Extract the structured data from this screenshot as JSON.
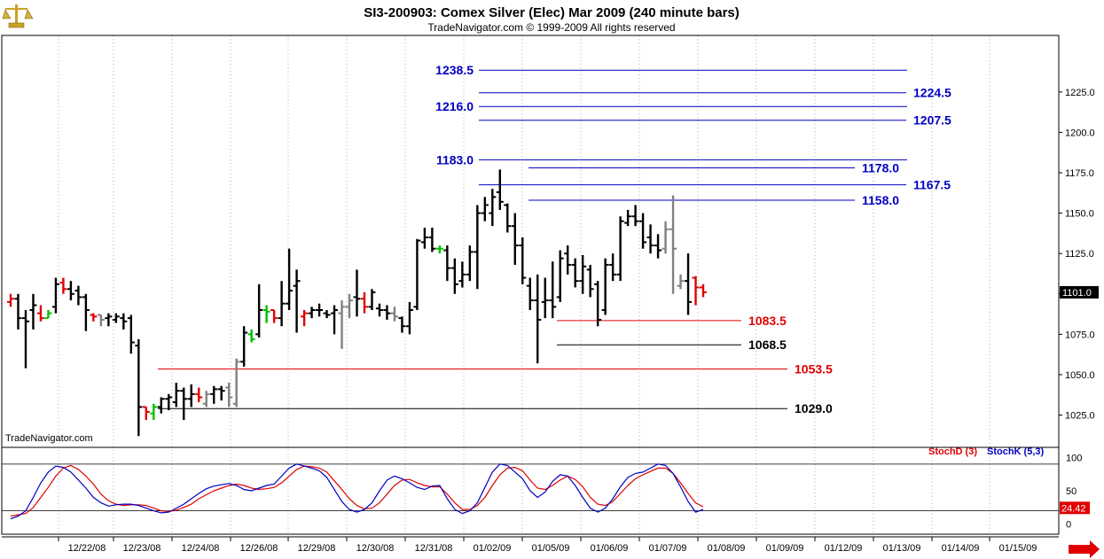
{
  "header": {
    "title": "SI3-200903:  Comex Silver (Elec) Mar 2009  (240 minute bars)",
    "subtitle": "TradeNavigator.com © 1999-2009 All rights reserved"
  },
  "watermark": "TradeNavigator.com",
  "colors": {
    "bar_black": "#000000",
    "bar_gray": "#808080",
    "bar_red": "#e00000",
    "bar_green": "#00c000",
    "level_blue": "#0000c0",
    "level_red": "#e00000",
    "level_black": "#000000",
    "stoch_d": "#e00000",
    "stoch_k": "#0000c0"
  },
  "chart_data": [
    {
      "type": "ohlc",
      "title": "SI3-200903:  Comex Silver (Elec) Mar 2009  (240 minute bars)",
      "ylim": [
        1005,
        1260
      ],
      "y_ticks": [
        "1025.0",
        "1050.0",
        "1075.0",
        "1100.0",
        "1125.0",
        "1150.0",
        "1175.0",
        "1200.0",
        "1225.0"
      ],
      "x_labels": [
        "12/22/08",
        "12/23/08",
        "12/24/08",
        "12/26/08",
        "12/29/08",
        "12/30/08",
        "12/31/08",
        "01/02/09",
        "01/05/09",
        "01/06/09",
        "01/07/09",
        "01/08/09",
        "01/09/09",
        "01/12/09",
        "01/13/09",
        "01/14/09",
        "01/15/09"
      ],
      "last_price": "1101.0",
      "bars": [
        {
          "o": 1095,
          "h": 1100,
          "l": 1092,
          "c": 1097,
          "color": "red"
        },
        {
          "o": 1097,
          "h": 1100,
          "l": 1078,
          "c": 1085,
          "color": "black"
        },
        {
          "o": 1085,
          "h": 1090,
          "l": 1054,
          "c": 1083,
          "color": "black"
        },
        {
          "o": 1090,
          "h": 1100,
          "l": 1078,
          "c": 1093,
          "color": "black"
        },
        {
          "o": 1088,
          "h": 1093,
          "l": 1083,
          "c": 1085,
          "color": "red"
        },
        {
          "o": 1085,
          "h": 1090,
          "l": 1085,
          "c": 1088,
          "color": "green"
        },
        {
          "o": 1092,
          "h": 1110,
          "l": 1088,
          "c": 1106,
          "color": "black"
        },
        {
          "o": 1107,
          "h": 1110,
          "l": 1100,
          "c": 1103,
          "color": "red"
        },
        {
          "o": 1103,
          "h": 1108,
          "l": 1096,
          "c": 1100,
          "color": "black"
        },
        {
          "o": 1102,
          "h": 1105,
          "l": 1093,
          "c": 1098,
          "color": "black"
        },
        {
          "o": 1098,
          "h": 1100,
          "l": 1077,
          "c": 1090,
          "color": "black"
        },
        {
          "o": 1087,
          "h": 1088,
          "l": 1083,
          "c": 1086,
          "color": "red"
        },
        {
          "o": 1087,
          "h": 1087,
          "l": 1080,
          "c": 1084,
          "color": "gray"
        },
        {
          "o": 1085,
          "h": 1088,
          "l": 1080,
          "c": 1086,
          "color": "black"
        },
        {
          "o": 1084,
          "h": 1088,
          "l": 1082,
          "c": 1086,
          "color": "black"
        },
        {
          "o": 1085,
          "h": 1088,
          "l": 1078,
          "c": 1083,
          "color": "black"
        },
        {
          "o": 1085,
          "h": 1087,
          "l": 1063,
          "c": 1070,
          "color": "black"
        },
        {
          "o": 1068,
          "h": 1072,
          "l": 1012,
          "c": 1030,
          "color": "black"
        },
        {
          "o": 1030,
          "h": 1030,
          "l": 1022,
          "c": 1027,
          "color": "red"
        },
        {
          "o": 1026,
          "h": 1032,
          "l": 1022,
          "c": 1030,
          "color": "green"
        },
        {
          "o": 1030,
          "h": 1036,
          "l": 1026,
          "c": 1035,
          "color": "black"
        },
        {
          "o": 1035,
          "h": 1038,
          "l": 1028,
          "c": 1036,
          "color": "black"
        },
        {
          "o": 1033,
          "h": 1045,
          "l": 1030,
          "c": 1040,
          "color": "black"
        },
        {
          "o": 1040,
          "h": 1042,
          "l": 1022,
          "c": 1035,
          "color": "black"
        },
        {
          "o": 1035,
          "h": 1044,
          "l": 1030,
          "c": 1038,
          "color": "black"
        },
        {
          "o": 1038,
          "h": 1042,
          "l": 1033,
          "c": 1036,
          "color": "red"
        },
        {
          "o": 1032,
          "h": 1040,
          "l": 1030,
          "c": 1038,
          "color": "gray"
        },
        {
          "o": 1038,
          "h": 1043,
          "l": 1032,
          "c": 1041,
          "color": "black"
        },
        {
          "o": 1041,
          "h": 1043,
          "l": 1034,
          "c": 1040,
          "color": "black"
        },
        {
          "o": 1042,
          "h": 1045,
          "l": 1030,
          "c": 1036,
          "color": "gray"
        },
        {
          "o": 1032,
          "h": 1060,
          "l": 1030,
          "c": 1058,
          "color": "gray"
        },
        {
          "o": 1058,
          "h": 1080,
          "l": 1055,
          "c": 1076,
          "color": "black"
        },
        {
          "o": 1075,
          "h": 1078,
          "l": 1070,
          "c": 1072,
          "color": "green"
        },
        {
          "o": 1075,
          "h": 1106,
          "l": 1073,
          "c": 1090,
          "color": "black"
        },
        {
          "o": 1090,
          "h": 1093,
          "l": 1082,
          "c": 1089,
          "color": "green"
        },
        {
          "o": 1090,
          "h": 1090,
          "l": 1082,
          "c": 1085,
          "color": "red"
        },
        {
          "o": 1085,
          "h": 1108,
          "l": 1080,
          "c": 1094,
          "color": "black"
        },
        {
          "o": 1094,
          "h": 1128,
          "l": 1090,
          "c": 1102,
          "color": "black"
        },
        {
          "o": 1105,
          "h": 1115,
          "l": 1076,
          "c": 1108,
          "color": "black"
        },
        {
          "o": 1086,
          "h": 1090,
          "l": 1080,
          "c": 1088,
          "color": "red"
        },
        {
          "o": 1088,
          "h": 1092,
          "l": 1085,
          "c": 1090,
          "color": "black"
        },
        {
          "o": 1090,
          "h": 1094,
          "l": 1086,
          "c": 1090,
          "color": "black"
        },
        {
          "o": 1088,
          "h": 1090,
          "l": 1085,
          "c": 1087,
          "color": "black"
        },
        {
          "o": 1088,
          "h": 1093,
          "l": 1075,
          "c": 1090,
          "color": "black"
        },
        {
          "o": 1088,
          "h": 1096,
          "l": 1066,
          "c": 1092,
          "color": "gray"
        },
        {
          "o": 1092,
          "h": 1100,
          "l": 1085,
          "c": 1096,
          "color": "gray"
        },
        {
          "o": 1098,
          "h": 1115,
          "l": 1086,
          "c": 1097,
          "color": "black"
        },
        {
          "o": 1097,
          "h": 1101,
          "l": 1088,
          "c": 1092,
          "color": "red"
        },
        {
          "o": 1092,
          "h": 1103,
          "l": 1090,
          "c": 1101,
          "color": "black"
        },
        {
          "o": 1091,
          "h": 1094,
          "l": 1086,
          "c": 1090,
          "color": "black"
        },
        {
          "o": 1090,
          "h": 1093,
          "l": 1084,
          "c": 1088,
          "color": "black"
        },
        {
          "o": 1088,
          "h": 1092,
          "l": 1083,
          "c": 1086,
          "color": "gray"
        },
        {
          "o": 1085,
          "h": 1086,
          "l": 1076,
          "c": 1080,
          "color": "black"
        },
        {
          "o": 1080,
          "h": 1095,
          "l": 1075,
          "c": 1090,
          "color": "black"
        },
        {
          "o": 1092,
          "h": 1134,
          "l": 1090,
          "c": 1133,
          "color": "black"
        },
        {
          "o": 1132,
          "h": 1141,
          "l": 1128,
          "c": 1135,
          "color": "black"
        },
        {
          "o": 1135,
          "h": 1141,
          "l": 1126,
          "c": 1128,
          "color": "black"
        },
        {
          "o": 1128,
          "h": 1130,
          "l": 1125,
          "c": 1128,
          "color": "green"
        },
        {
          "o": 1127,
          "h": 1130,
          "l": 1108,
          "c": 1116,
          "color": "black"
        },
        {
          "o": 1116,
          "h": 1122,
          "l": 1100,
          "c": 1106,
          "color": "black"
        },
        {
          "o": 1108,
          "h": 1120,
          "l": 1104,
          "c": 1112,
          "color": "black"
        },
        {
          "o": 1112,
          "h": 1130,
          "l": 1108,
          "c": 1126,
          "color": "black"
        },
        {
          "o": 1126,
          "h": 1155,
          "l": 1103,
          "c": 1150,
          "color": "black"
        },
        {
          "o": 1150,
          "h": 1160,
          "l": 1145,
          "c": 1155,
          "color": "black"
        },
        {
          "o": 1150,
          "h": 1165,
          "l": 1142,
          "c": 1160,
          "color": "black"
        },
        {
          "o": 1163,
          "h": 1177,
          "l": 1152,
          "c": 1157,
          "color": "black"
        },
        {
          "o": 1155,
          "h": 1156,
          "l": 1138,
          "c": 1142,
          "color": "black"
        },
        {
          "o": 1142,
          "h": 1150,
          "l": 1118,
          "c": 1130,
          "color": "black"
        },
        {
          "o": 1130,
          "h": 1135,
          "l": 1106,
          "c": 1110,
          "color": "black"
        },
        {
          "o": 1105,
          "h": 1110,
          "l": 1090,
          "c": 1096,
          "color": "black"
        },
        {
          "o": 1096,
          "h": 1112,
          "l": 1057,
          "c": 1084,
          "color": "black"
        },
        {
          "o": 1095,
          "h": 1110,
          "l": 1085,
          "c": 1096,
          "color": "black"
        },
        {
          "o": 1096,
          "h": 1120,
          "l": 1085,
          "c": 1092,
          "color": "black"
        },
        {
          "o": 1098,
          "h": 1127,
          "l": 1095,
          "c": 1122,
          "color": "black"
        },
        {
          "o": 1125,
          "h": 1130,
          "l": 1112,
          "c": 1118,
          "color": "black"
        },
        {
          "o": 1118,
          "h": 1122,
          "l": 1104,
          "c": 1108,
          "color": "black"
        },
        {
          "o": 1108,
          "h": 1124,
          "l": 1100,
          "c": 1117,
          "color": "black"
        },
        {
          "o": 1115,
          "h": 1118,
          "l": 1098,
          "c": 1103,
          "color": "black"
        },
        {
          "o": 1106,
          "h": 1108,
          "l": 1080,
          "c": 1084,
          "color": "black"
        },
        {
          "o": 1090,
          "h": 1122,
          "l": 1087,
          "c": 1118,
          "color": "black"
        },
        {
          "o": 1118,
          "h": 1125,
          "l": 1108,
          "c": 1112,
          "color": "black"
        },
        {
          "o": 1112,
          "h": 1148,
          "l": 1108,
          "c": 1145,
          "color": "black"
        },
        {
          "o": 1144,
          "h": 1152,
          "l": 1142,
          "c": 1148,
          "color": "black"
        },
        {
          "o": 1148,
          "h": 1155,
          "l": 1142,
          "c": 1145,
          "color": "black"
        },
        {
          "o": 1145,
          "h": 1150,
          "l": 1128,
          "c": 1132,
          "color": "black"
        },
        {
          "o": 1135,
          "h": 1143,
          "l": 1125,
          "c": 1130,
          "color": "black"
        },
        {
          "o": 1130,
          "h": 1137,
          "l": 1122,
          "c": 1127,
          "color": "black"
        },
        {
          "o": 1128,
          "h": 1145,
          "l": 1125,
          "c": 1140,
          "color": "gray"
        },
        {
          "o": 1140,
          "h": 1161,
          "l": 1100,
          "c": 1128,
          "color": "gray"
        },
        {
          "o": 1105,
          "h": 1112,
          "l": 1103,
          "c": 1108,
          "color": "gray"
        },
        {
          "o": 1108,
          "h": 1125,
          "l": 1087,
          "c": 1095,
          "color": "black"
        },
        {
          "o": 1110,
          "h": 1111,
          "l": 1093,
          "c": 1104,
          "color": "red"
        },
        {
          "o": 1104,
          "h": 1106,
          "l": 1098,
          "c": 1101,
          "color": "red"
        }
      ],
      "levels": [
        {
          "value": 1238.5,
          "label": "1238.5",
          "color": "blue",
          "label_side": "left",
          "x_start": "01/02/09",
          "x_end": "01/08/09"
        },
        {
          "value": 1224.5,
          "label": "1224.5",
          "color": "blue",
          "label_side": "right",
          "x_start": "01/02/09",
          "x_end": "01/08/09"
        },
        {
          "value": 1216.0,
          "label": "1216.0",
          "color": "blue",
          "label_side": "left",
          "x_start": "01/02/09",
          "x_end": "01/08/09"
        },
        {
          "value": 1207.5,
          "label": "1207.5",
          "color": "blue",
          "label_side": "right",
          "x_start": "01/02/09",
          "x_end": "01/08/09"
        },
        {
          "value": 1183.0,
          "label": "1183.0",
          "color": "blue",
          "label_side": "left",
          "x_start": "01/02/09",
          "x_end": "01/08/09"
        },
        {
          "value": 1178.0,
          "label": "1178.0",
          "color": "blue",
          "label_side": "right",
          "x_start": "01/05/09",
          "x_end": "01/07/09"
        },
        {
          "value": 1167.5,
          "label": "1167.5",
          "color": "blue",
          "label_side": "right",
          "x_start": "01/02/09",
          "x_end": "01/08/09"
        },
        {
          "value": 1158.0,
          "label": "1158.0",
          "color": "blue",
          "label_side": "right",
          "x_start": "01/05/09",
          "x_end": "01/07/09"
        },
        {
          "value": 1083.5,
          "label": "1083.5",
          "color": "red",
          "label_side": "right",
          "x_start": "01/05/09",
          "x_end": "01/07/09"
        },
        {
          "value": 1068.5,
          "label": "1068.5",
          "color": "black",
          "label_side": "right",
          "x_start": "01/05/09",
          "x_end": "01/07/09"
        },
        {
          "value": 1053.5,
          "label": "1053.5",
          "color": "red",
          "label_side": "right",
          "x_start": "12/23/08",
          "x_end": "01/07/09"
        },
        {
          "value": 1029.0,
          "label": "1029.0",
          "color": "black",
          "label_side": "right",
          "x_start": "12/23/08",
          "x_end": "01/07/09"
        }
      ]
    },
    {
      "type": "line",
      "title": "",
      "ylim": [
        -15,
        115
      ],
      "y_ticks": [
        "100",
        "50",
        "0"
      ],
      "ref_lines": [
        90,
        20
      ],
      "last_value": "24.42",
      "series": [
        {
          "name": "StochD (3)",
          "color": "red",
          "values": [
            12,
            14,
            16,
            25,
            40,
            55,
            72,
            84,
            88,
            82,
            72,
            60,
            45,
            35,
            30,
            28,
            29,
            29,
            28,
            24,
            20,
            19,
            21,
            25,
            30,
            38,
            44,
            50,
            54,
            58,
            60,
            58,
            54,
            52,
            53,
            55,
            62,
            72,
            82,
            87,
            86,
            84,
            78,
            65,
            52,
            38,
            28,
            23,
            24,
            32,
            45,
            58,
            66,
            67,
            62,
            58,
            56,
            56,
            45,
            32,
            22,
            22,
            28,
            40,
            58,
            74,
            84,
            85,
            80,
            66,
            54,
            52,
            58,
            66,
            72,
            67,
            56,
            40,
            30,
            28,
            34,
            46,
            58,
            68,
            74,
            79,
            84,
            84,
            76,
            62,
            46,
            32,
            26
          ]
        },
        {
          "name": "StochK (5,3)",
          "color": "blue",
          "values": [
            8,
            12,
            20,
            40,
            62,
            78,
            87,
            85,
            78,
            66,
            54,
            40,
            32,
            27,
            29,
            30,
            30,
            28,
            24,
            20,
            17,
            18,
            24,
            30,
            38,
            46,
            53,
            57,
            59,
            61,
            58,
            52,
            50,
            54,
            58,
            60,
            72,
            84,
            90,
            87,
            84,
            80,
            70,
            52,
            34,
            22,
            18,
            22,
            32,
            50,
            66,
            72,
            68,
            62,
            55,
            52,
            57,
            58,
            38,
            22,
            16,
            20,
            32,
            55,
            78,
            90,
            88,
            78,
            68,
            50,
            40,
            48,
            64,
            74,
            72,
            58,
            40,
            24,
            18,
            24,
            38,
            56,
            70,
            76,
            78,
            84,
            90,
            88,
            76,
            56,
            34,
            18,
            22
          ]
        }
      ]
    }
  ]
}
